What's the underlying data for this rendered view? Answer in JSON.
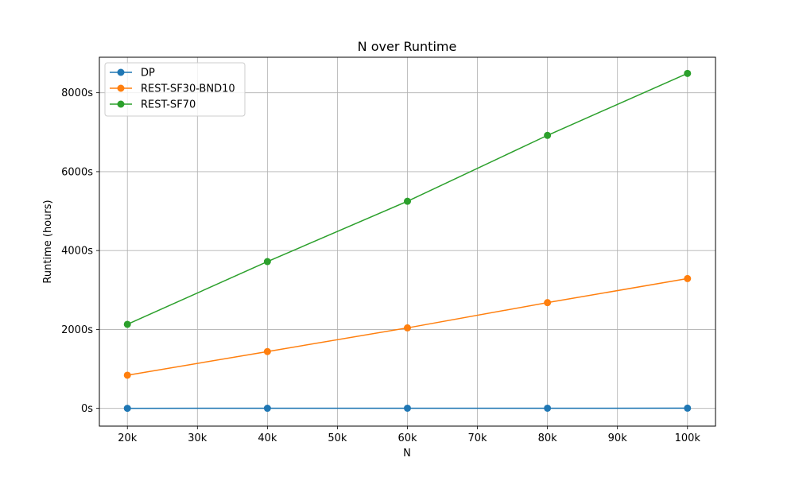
{
  "chart_data": {
    "type": "line",
    "title": "N over Runtime",
    "xlabel": "N",
    "ylabel": "Runtime (hours)",
    "x": [
      20000,
      40000,
      60000,
      80000,
      100000
    ],
    "xlim": [
      16000,
      104000
    ],
    "ylim": [
      -450,
      8900
    ],
    "x_ticks": [
      20000,
      30000,
      40000,
      50000,
      60000,
      70000,
      80000,
      90000,
      100000
    ],
    "x_tick_labels": [
      "20k",
      "30k",
      "40k",
      "50k",
      "60k",
      "70k",
      "80k",
      "90k",
      "100k"
    ],
    "y_ticks": [
      0,
      2000,
      4000,
      6000,
      8000
    ],
    "y_tick_labels": [
      "0s",
      "2000s",
      "4000s",
      "6000s",
      "8000s"
    ],
    "grid": true,
    "legend_position": "top-left",
    "series": [
      {
        "name": "DP",
        "color": "#1f77b4",
        "values": [
          2,
          3,
          4,
          4,
          5
        ]
      },
      {
        "name": "REST-SF30-BND10",
        "color": "#ff7f0e",
        "values": [
          840,
          1440,
          2040,
          2680,
          3290
        ]
      },
      {
        "name": "REST-SF70",
        "color": "#2ca02c",
        "values": [
          2130,
          3720,
          5250,
          6920,
          8490
        ]
      }
    ]
  }
}
